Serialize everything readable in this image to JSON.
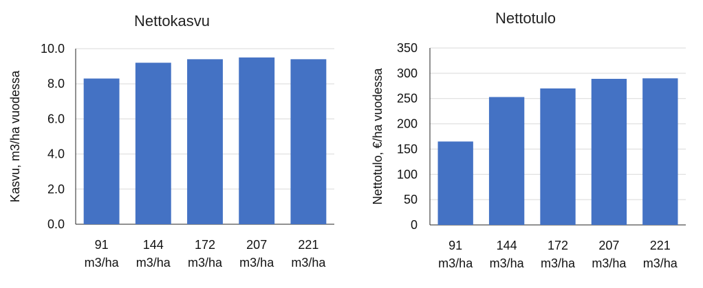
{
  "bar_color": "#4472C4",
  "chart_data": [
    {
      "type": "bar",
      "title": "Nettokasvu",
      "ylabel": "Kasvu, m3/ha vuodessa",
      "xlabel": "",
      "categories": [
        [
          "91",
          "m3/ha"
        ],
        [
          "144",
          "m3/ha"
        ],
        [
          "172",
          "m3/ha"
        ],
        [
          "207",
          "m3/ha"
        ],
        [
          "221",
          "m3/ha"
        ]
      ],
      "values": [
        8.3,
        9.2,
        9.4,
        9.5,
        9.4
      ],
      "ylim": [
        0,
        10
      ],
      "yticks": [
        "0.0",
        "2.0",
        "4.0",
        "6.0",
        "8.0",
        "10.0"
      ],
      "grid": true,
      "legend": "none"
    },
    {
      "type": "bar",
      "title": "Nettotulo",
      "ylabel": "Nettotulo, €/ha vuodessa",
      "xlabel": "",
      "categories": [
        [
          "91",
          "m3/ha"
        ],
        [
          "144",
          "m3/ha"
        ],
        [
          "172",
          "m3/ha"
        ],
        [
          "207",
          "m3/ha"
        ],
        [
          "221",
          "m3/ha"
        ]
      ],
      "values": [
        165,
        253,
        270,
        289,
        290
      ],
      "ylim": [
        0,
        350
      ],
      "yticks": [
        "0",
        "50",
        "100",
        "150",
        "200",
        "250",
        "300",
        "350"
      ],
      "grid": true,
      "legend": "none"
    }
  ]
}
